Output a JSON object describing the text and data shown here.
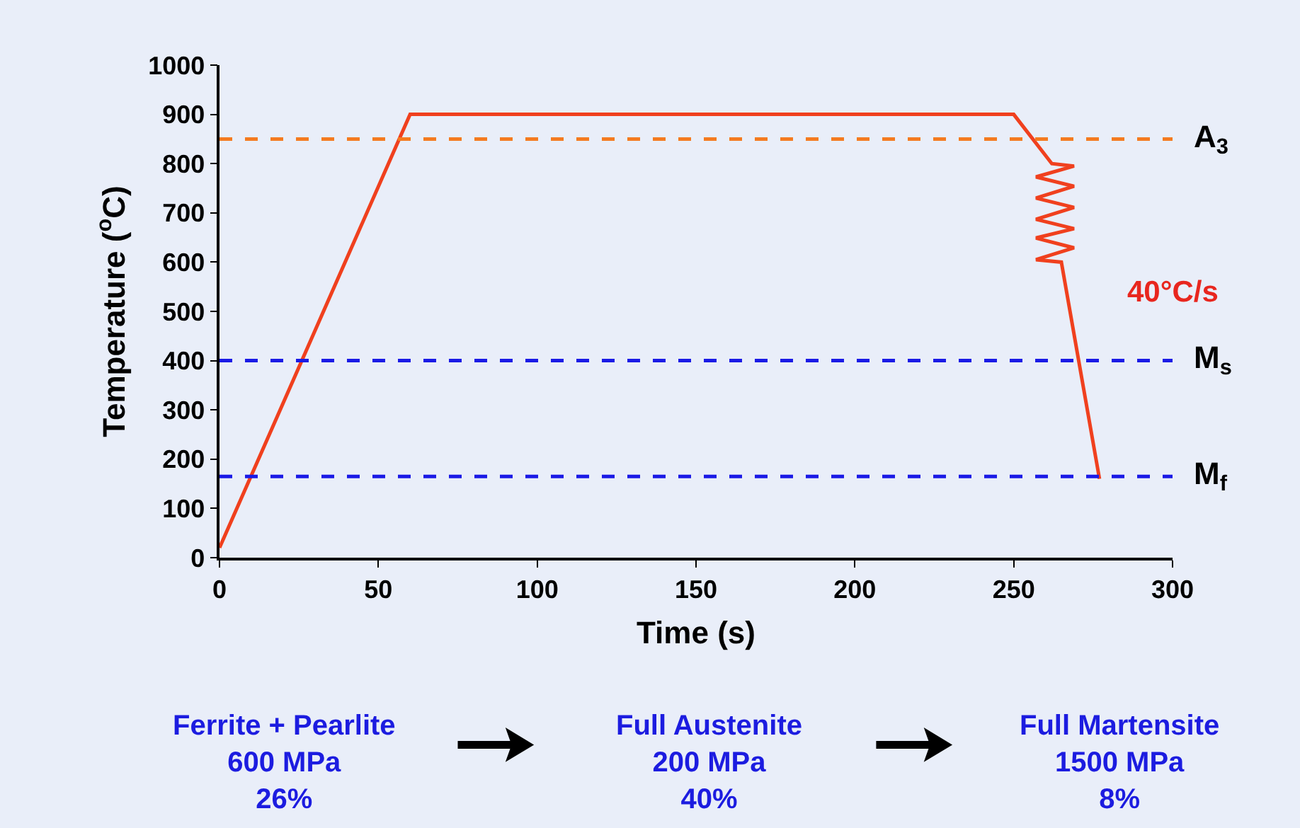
{
  "chart_data": {
    "type": "line",
    "xlabel": "Time (s)",
    "ylabel": "Temperature ($^{o}$C)",
    "xlim": [
      0,
      300
    ],
    "xticks": [
      0,
      50,
      100,
      150,
      200,
      250,
      300
    ],
    "ylim": [
      0,
      1000
    ],
    "yticks": [
      0,
      100,
      200,
      300,
      400,
      500,
      600,
      700,
      800,
      900,
      1000
    ],
    "grid": false,
    "marker": "none",
    "line_style": "solid",
    "series": [
      {
        "color": "#f0401e",
        "x": [
          0,
          60,
          250,
          262,
          269,
          257,
          269,
          257,
          269,
          257,
          269,
          257,
          269,
          257,
          265,
          277
        ],
        "values": [
          20,
          900,
          900,
          800,
          795,
          773,
          754,
          730,
          711,
          687,
          668,
          649,
          629,
          605,
          600,
          160
        ]
      }
    ],
    "ref_lines": [
      {
        "axis": "y",
        "value": 850,
        "label": "A$_{3}$",
        "color": "#f47b20",
        "line_style": "dashed"
      },
      {
        "axis": "y",
        "value": 400,
        "label": "M$_{s}$",
        "color": "#1a1ae6",
        "line_style": "dashed"
      },
      {
        "axis": "y",
        "value": 165,
        "label": "M$_{f}$",
        "color": "#1a1ae6",
        "line_style": "dashed"
      }
    ],
    "annotations": [
      "40°C/s",
      "Ferrite + Pearlite\n600 MPa\n26%",
      "Full Austenite\n200 MPa\n40%",
      "Full Martensite\n1500 MPa\n8%"
    ]
  }
}
